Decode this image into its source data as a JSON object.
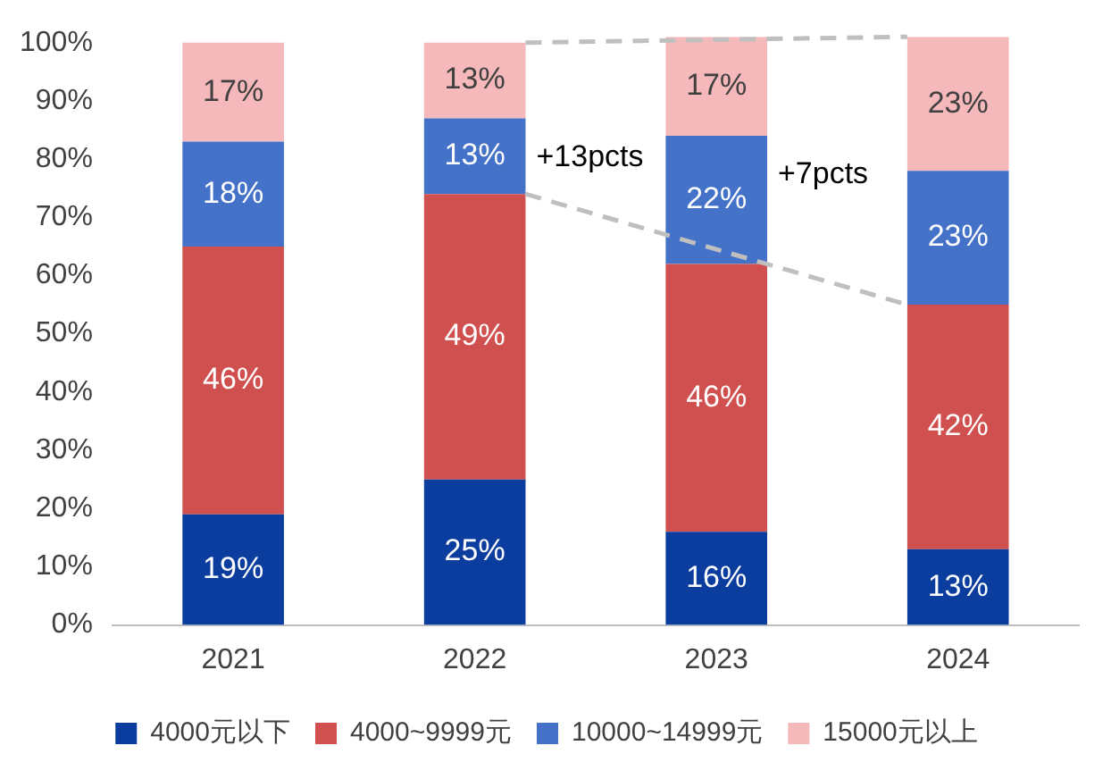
{
  "chart_data": {
    "type": "bar",
    "stacked": true,
    "categories": [
      "2021",
      "2022",
      "2023",
      "2024"
    ],
    "series": [
      {
        "name": "4000元以下",
        "color": "#0b3d9e",
        "values": [
          19,
          25,
          16,
          13
        ],
        "value_labels": [
          "19%",
          "25%",
          "16%",
          "13%"
        ]
      },
      {
        "name": "4000~9999元",
        "color": "#d0504f",
        "values": [
          46,
          49,
          46,
          42
        ],
        "value_labels": [
          "46%",
          "49%",
          "46%",
          "42%"
        ]
      },
      {
        "name": "10000~14999元",
        "color": "#4472c8",
        "values": [
          18,
          13,
          22,
          23
        ],
        "value_labels": [
          "18%",
          "13%",
          "22%",
          "23%"
        ]
      },
      {
        "name": "15000元以上",
        "color": "#f5b8bb",
        "values": [
          17,
          13,
          17,
          23
        ],
        "value_labels": [
          "17%",
          "13%",
          "17%",
          "23%"
        ]
      }
    ],
    "ylim": [
      0,
      101
    ],
    "yticks": [
      {
        "value": 0,
        "label": "0%"
      },
      {
        "value": 10,
        "label": "10%"
      },
      {
        "value": 20,
        "label": "20%"
      },
      {
        "value": 30,
        "label": "30%"
      },
      {
        "value": 40,
        "label": "40%"
      },
      {
        "value": 50,
        "label": "50%"
      },
      {
        "value": 60,
        "label": "60%"
      },
      {
        "value": 70,
        "label": "70%"
      },
      {
        "value": 80,
        "label": "80%"
      },
      {
        "value": 90,
        "label": "90%"
      },
      {
        "value": 100,
        "label": "100%"
      }
    ],
    "legend": "bottom",
    "grid": false,
    "annotations": [
      "+13pcts",
      "+7pcts"
    ]
  }
}
